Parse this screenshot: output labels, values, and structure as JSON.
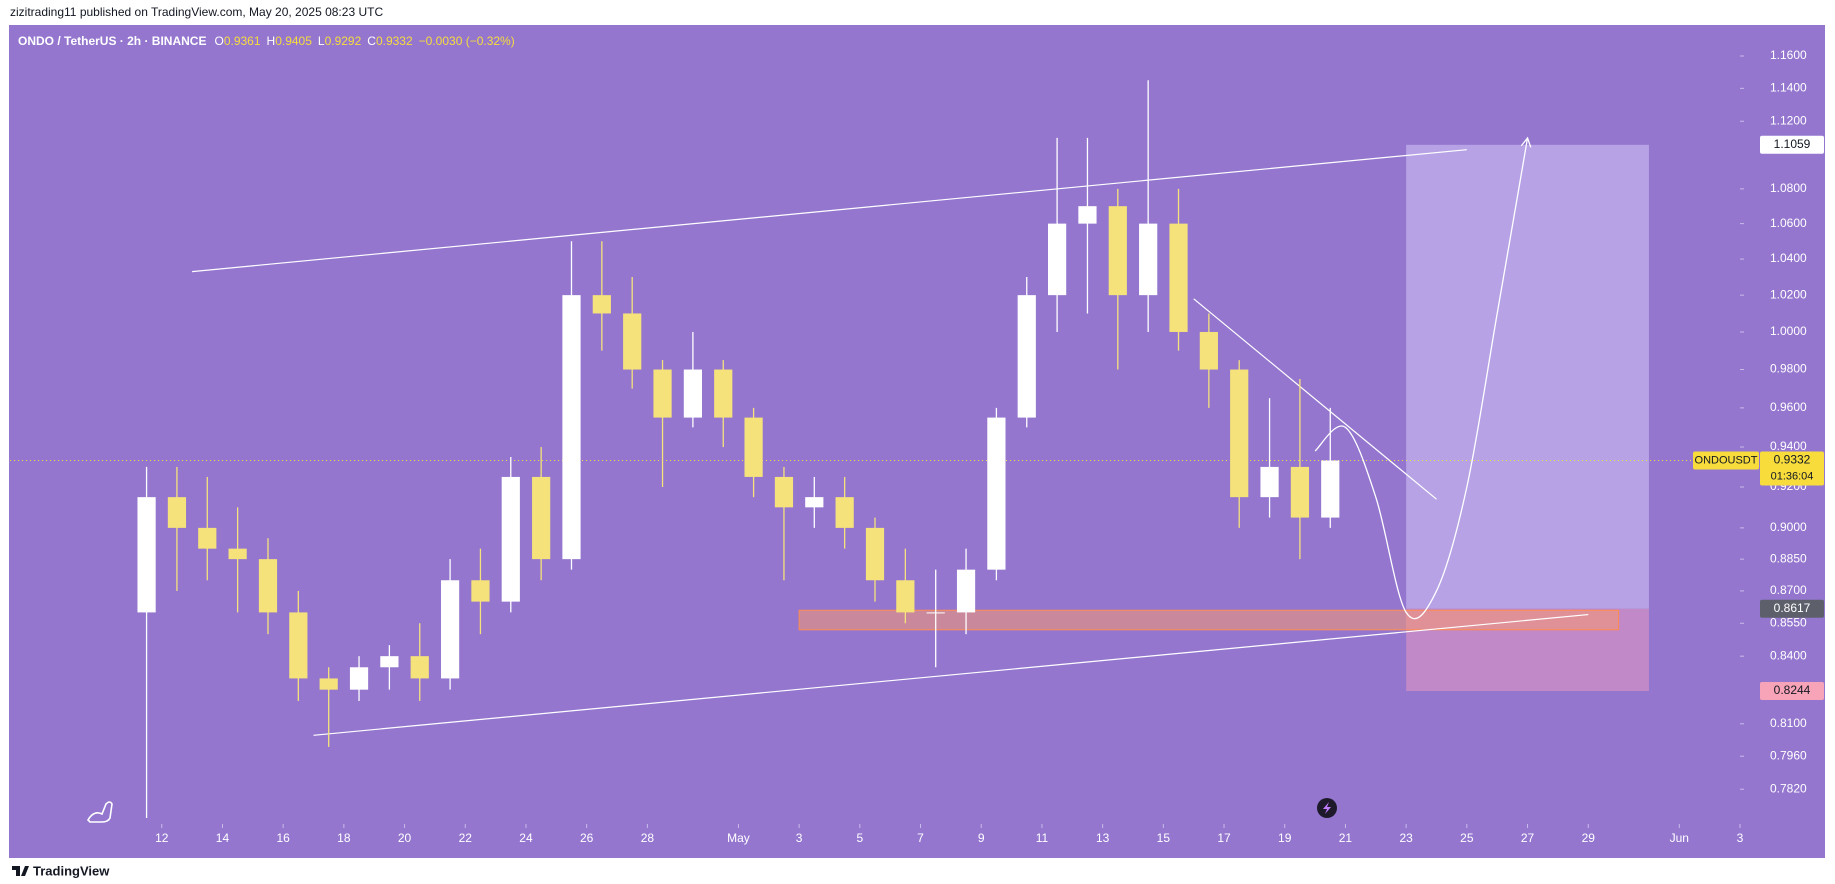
{
  "header": {
    "publisher": "zizitrading11 published on TradingView.com, May 20, 2025 08:23 UTC",
    "footer_brand": "TradingView"
  },
  "chart_data": {
    "type": "candlestick",
    "title": "ONDO / TetherUS · 2h · BINANCE",
    "legend_labels": [
      "O",
      "H",
      "L",
      "C"
    ],
    "legend_values": [
      0.9361,
      0.9405,
      0.9292,
      0.9332
    ],
    "change": "−0.0030 (−0.32%)",
    "background": "#9476cf",
    "up_color": "#ffffff",
    "down_color": "#f5e27a",
    "x": [
      "2025-04-11",
      "2025-04-12",
      "2025-04-13",
      "2025-04-14",
      "2025-04-15",
      "2025-04-16",
      "2025-04-17",
      "2025-04-18",
      "2025-04-19",
      "2025-04-20",
      "2025-04-21",
      "2025-04-22",
      "2025-04-23",
      "2025-04-24",
      "2025-04-25",
      "2025-04-26",
      "2025-04-27",
      "2025-04-28",
      "2025-04-29",
      "2025-04-30",
      "2025-05-01",
      "2025-05-02",
      "2025-05-03",
      "2025-05-04",
      "2025-05-05",
      "2025-05-06",
      "2025-05-07",
      "2025-05-08",
      "2025-05-09",
      "2025-05-10",
      "2025-05-11",
      "2025-05-12",
      "2025-05-13",
      "2025-05-14",
      "2025-05-15",
      "2025-05-16",
      "2025-05-17",
      "2025-05-18",
      "2025-05-19",
      "2025-05-20"
    ],
    "open": [
      0.86,
      0.915,
      0.9,
      0.89,
      0.885,
      0.86,
      0.83,
      0.825,
      0.835,
      0.84,
      0.83,
      0.875,
      0.865,
      0.925,
      0.885,
      1.02,
      1.01,
      0.98,
      0.955,
      0.98,
      0.955,
      0.925,
      0.91,
      0.915,
      0.9,
      0.875,
      0.86,
      0.86,
      0.88,
      0.955,
      1.02,
      1.06,
      1.07,
      1.02,
      1.06,
      1.0,
      0.98,
      0.915,
      0.93,
      0.905
    ],
    "high": [
      0.93,
      0.93,
      0.925,
      0.91,
      0.895,
      0.87,
      0.835,
      0.84,
      0.845,
      0.855,
      0.885,
      0.89,
      0.935,
      0.94,
      1.05,
      1.05,
      1.03,
      0.985,
      1.0,
      0.985,
      0.96,
      0.93,
      0.925,
      0.925,
      0.905,
      0.89,
      0.88,
      0.89,
      0.96,
      1.03,
      1.11,
      1.11,
      1.08,
      1.145,
      1.08,
      1.01,
      0.985,
      0.965,
      0.975,
      0.96
    ],
    "low": [
      0.77,
      0.87,
      0.875,
      0.86,
      0.85,
      0.82,
      0.8,
      0.82,
      0.825,
      0.82,
      0.825,
      0.85,
      0.86,
      0.875,
      0.88,
      0.99,
      0.97,
      0.92,
      0.95,
      0.94,
      0.915,
      0.875,
      0.9,
      0.89,
      0.865,
      0.855,
      0.835,
      0.85,
      0.875,
      0.95,
      1.0,
      1.01,
      0.98,
      1.0,
      0.99,
      0.96,
      0.9,
      0.905,
      0.885,
      0.9
    ],
    "close": [
      0.915,
      0.9,
      0.89,
      0.885,
      0.86,
      0.83,
      0.825,
      0.835,
      0.84,
      0.83,
      0.875,
      0.865,
      0.925,
      0.885,
      1.02,
      1.01,
      0.98,
      0.955,
      0.98,
      0.955,
      0.925,
      0.91,
      0.915,
      0.9,
      0.875,
      0.86,
      0.86,
      0.88,
      0.955,
      1.02,
      1.06,
      1.07,
      1.02,
      1.06,
      1.0,
      0.98,
      0.915,
      0.93,
      0.905,
      0.9332
    ],
    "xlim": [
      "2025-04-07",
      "2025-06-03"
    ],
    "xticks": [
      {
        "value": "2025-04-12",
        "label": "12"
      },
      {
        "value": "2025-04-14",
        "label": "14"
      },
      {
        "value": "2025-04-16",
        "label": "16"
      },
      {
        "value": "2025-04-18",
        "label": "18"
      },
      {
        "value": "2025-04-20",
        "label": "20"
      },
      {
        "value": "2025-04-22",
        "label": "22"
      },
      {
        "value": "2025-04-24",
        "label": "24"
      },
      {
        "value": "2025-04-26",
        "label": "26"
      },
      {
        "value": "2025-04-28",
        "label": "28"
      },
      {
        "value": "2025-05-01",
        "label": "May"
      },
      {
        "value": "2025-05-03",
        "label": "3"
      },
      {
        "value": "2025-05-05",
        "label": "5"
      },
      {
        "value": "2025-05-07",
        "label": "7"
      },
      {
        "value": "2025-05-09",
        "label": "9"
      },
      {
        "value": "2025-05-11",
        "label": "11"
      },
      {
        "value": "2025-05-13",
        "label": "13"
      },
      {
        "value": "2025-05-15",
        "label": "15"
      },
      {
        "value": "2025-05-17",
        "label": "17"
      },
      {
        "value": "2025-05-19",
        "label": "19"
      },
      {
        "value": "2025-05-21",
        "label": "21"
      },
      {
        "value": "2025-05-23",
        "label": "23"
      },
      {
        "value": "2025-05-25",
        "label": "25"
      },
      {
        "value": "2025-05-27",
        "label": "27"
      },
      {
        "value": "2025-05-29",
        "label": "29"
      },
      {
        "value": "2025-06-01",
        "label": "Jun"
      },
      {
        "value": "2025-06-03",
        "label": "3"
      }
    ],
    "ylim": [
      0.7675,
      1.1795
    ],
    "log_scale": true,
    "grid": false,
    "yticks": [
      {
        "value": 1.16,
        "label": "1.1600"
      },
      {
        "value": 1.14,
        "label": "1.1400"
      },
      {
        "value": 1.12,
        "label": "1.1200"
      },
      {
        "value": 1.08,
        "label": "1.0800"
      },
      {
        "value": 1.06,
        "label": "1.0600"
      },
      {
        "value": 1.04,
        "label": "1.0400"
      },
      {
        "value": 1.02,
        "label": "1.0200"
      },
      {
        "value": 1.0,
        "label": "1.0000"
      },
      {
        "value": 0.98,
        "label": "0.9800"
      },
      {
        "value": 0.96,
        "label": "0.9600"
      },
      {
        "value": 0.94,
        "label": "0.9400"
      },
      {
        "value": 0.92,
        "label": "0.9200"
      },
      {
        "value": 0.9,
        "label": "0.9000"
      },
      {
        "value": 0.885,
        "label": "0.8850"
      },
      {
        "value": 0.87,
        "label": "0.8700"
      },
      {
        "value": 0.855,
        "label": "0.8550"
      },
      {
        "value": 0.84,
        "label": "0.8400"
      },
      {
        "value": 0.81,
        "label": "0.8100"
      },
      {
        "value": 0.796,
        "label": "0.7960"
      },
      {
        "value": 0.782,
        "label": "0.7820"
      }
    ],
    "last_price": {
      "value": 0.9332,
      "symbol": "ONDOUSDT",
      "countdown": "01:36:04",
      "color": "#f7dc3c"
    },
    "trendlines": [
      {
        "x": [
          "2025-04-13",
          "2025-05-25"
        ],
        "y": [
          1.033,
          1.103
        ]
      },
      {
        "x": [
          "2025-04-17",
          "2025-05-29"
        ],
        "y": [
          0.805,
          0.859
        ]
      },
      {
        "x": [
          "2025-05-16",
          "2025-05-24"
        ],
        "y": [
          1.018,
          0.914
        ]
      }
    ],
    "zone": {
      "x": [
        "2025-05-03",
        "2025-05-30"
      ],
      "y": [
        0.852,
        0.861
      ]
    },
    "position": {
      "x": [
        "2025-05-23",
        "2025-05-31"
      ],
      "target": 1.1059,
      "entry": 0.8617,
      "stop": 0.8244
    },
    "projection": {
      "x": [
        "2025-05-20",
        "2025-05-21",
        "2025-05-22",
        "2025-05-23",
        "2025-05-24",
        "2025-05-25",
        "2025-05-26",
        "2025-05-27"
      ],
      "y": [
        0.938,
        0.95,
        0.915,
        0.86,
        0.87,
        0.92,
        1.01,
        1.11
      ]
    }
  }
}
